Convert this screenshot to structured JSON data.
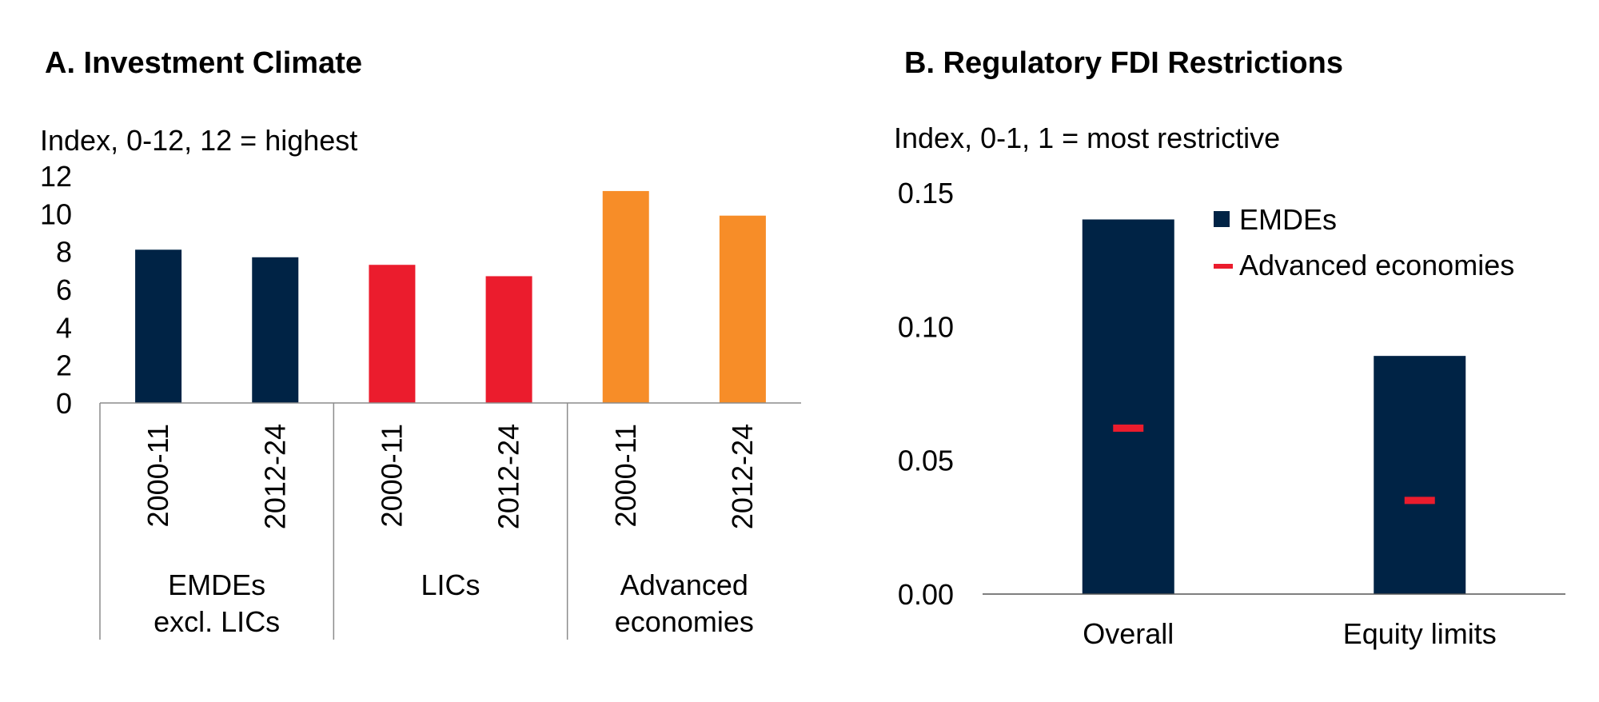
{
  "panels": {
    "a_title": "A. Investment Climate",
    "b_title": "B. Regulatory FDI Restrictions"
  },
  "chart_data": [
    {
      "type": "bar",
      "title": "A. Investment Climate",
      "ylabel": "Index, 0-12, 12 = highest",
      "ylim": [
        0,
        12
      ],
      "yticks": [
        "0",
        "2",
        "4",
        "6",
        "8",
        "10",
        "12"
      ],
      "groups": [
        {
          "label_lines": [
            "EMDEs",
            "excl. LICs"
          ],
          "color": "#002345",
          "bars": [
            {
              "label": "2000-11",
              "value": 8.1
            },
            {
              "label": "2012-24",
              "value": 7.7
            }
          ]
        },
        {
          "label_lines": [
            "LICs"
          ],
          "color": "#EB1C2D",
          "bars": [
            {
              "label": "2000-11",
              "value": 7.3
            },
            {
              "label": "2012-24",
              "value": 6.7
            }
          ]
        },
        {
          "label_lines": [
            "Advanced",
            "economies"
          ],
          "color": "#F78D28",
          "bars": [
            {
              "label": "2000-11",
              "value": 11.2
            },
            {
              "label": "2012-24",
              "value": 9.9
            }
          ]
        }
      ]
    },
    {
      "type": "bar",
      "title": "B. Regulatory FDI Restrictions",
      "ylabel": "Index, 0-1, 1 = most restrictive",
      "ylim": [
        0,
        0.15
      ],
      "yticks": [
        "0.00",
        "0.05",
        "0.10",
        "0.15"
      ],
      "categories": [
        "Overall",
        "Equity limits"
      ],
      "series": [
        {
          "name": "EMDEs",
          "kind": "bar",
          "color": "#002345",
          "values": [
            0.14,
            0.089
          ]
        },
        {
          "name": "Advanced economies",
          "kind": "marker",
          "color": "#EB1C2D",
          "values": [
            0.062,
            0.035
          ]
        }
      ],
      "legend_position": "top-right"
    }
  ]
}
